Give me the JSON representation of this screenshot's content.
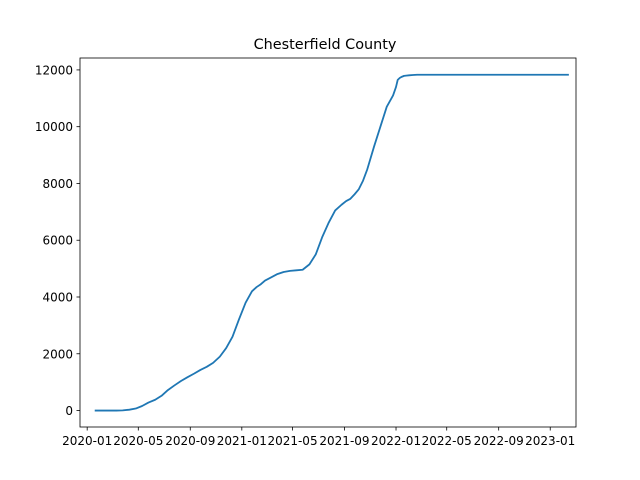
{
  "chart_data": {
    "type": "line",
    "title": "Chesterfield County",
    "xlabel": "",
    "ylabel": "",
    "grid": false,
    "legend": "none",
    "line_color": "#1f77b4",
    "xlim": [
      "2019-12-15",
      "2023-03-03"
    ],
    "ylim": [
      -580,
      12420
    ],
    "x_ticks": [
      {
        "date": "2020-01-01",
        "label": "2020-01"
      },
      {
        "date": "2020-05-01",
        "label": "2020-05"
      },
      {
        "date": "2020-09-01",
        "label": "2020-09"
      },
      {
        "date": "2021-01-01",
        "label": "2021-01"
      },
      {
        "date": "2021-05-01",
        "label": "2021-05"
      },
      {
        "date": "2021-09-01",
        "label": "2021-09"
      },
      {
        "date": "2022-01-01",
        "label": "2022-01"
      },
      {
        "date": "2022-05-01",
        "label": "2022-05"
      },
      {
        "date": "2022-09-01",
        "label": "2022-09"
      },
      {
        "date": "2023-01-01",
        "label": "2023-01"
      }
    ],
    "y_ticks": [
      {
        "value": 0,
        "label": "0"
      },
      {
        "value": 2000,
        "label": "2000"
      },
      {
        "value": 4000,
        "label": "4000"
      },
      {
        "value": 6000,
        "label": "6000"
      },
      {
        "value": 8000,
        "label": "8000"
      },
      {
        "value": 10000,
        "label": "10000"
      },
      {
        "value": 12000,
        "label": "12000"
      }
    ],
    "series": [
      {
        "x": [
          "2020-01-21",
          "2020-02-15",
          "2020-03-10",
          "2020-03-25",
          "2020-04-10",
          "2020-04-25",
          "2020-05-10",
          "2020-05-25",
          "2020-06-10",
          "2020-06-25",
          "2020-07-10",
          "2020-07-25",
          "2020-08-10",
          "2020-08-25",
          "2020-09-10",
          "2020-09-25",
          "2020-10-10",
          "2020-10-25",
          "2020-11-10",
          "2020-11-25",
          "2020-12-10",
          "2020-12-25",
          "2021-01-10",
          "2021-01-25",
          "2021-02-05",
          "2021-02-15",
          "2021-02-25",
          "2021-03-10",
          "2021-03-25",
          "2021-04-10",
          "2021-04-25",
          "2021-05-10",
          "2021-05-25",
          "2021-06-10",
          "2021-06-25",
          "2021-07-10",
          "2021-07-25",
          "2021-08-10",
          "2021-08-25",
          "2021-09-05",
          "2021-09-15",
          "2021-09-25",
          "2021-10-05",
          "2021-10-15",
          "2021-10-25",
          "2021-11-10",
          "2021-11-25",
          "2021-12-10",
          "2021-12-25",
          "2022-01-01",
          "2022-01-05",
          "2022-01-10",
          "2022-01-15",
          "2022-01-20",
          "2022-01-25",
          "2022-02-01",
          "2022-02-10",
          "2022-02-20",
          "2022-03-01",
          "2022-03-15",
          "2022-04-01",
          "2022-04-15",
          "2022-05-01",
          "2022-06-01",
          "2022-07-01",
          "2022-08-01",
          "2022-09-01",
          "2022-10-01",
          "2022-11-01",
          "2022-12-01",
          "2023-01-01",
          "2023-02-01",
          "2023-02-12"
        ],
        "y": [
          0,
          0,
          0,
          5,
          30,
          70,
          160,
          280,
          380,
          520,
          720,
          880,
          1040,
          1170,
          1300,
          1430,
          1540,
          1680,
          1900,
          2200,
          2600,
          3200,
          3800,
          4200,
          4350,
          4450,
          4580,
          4680,
          4800,
          4880,
          4920,
          4940,
          4960,
          5150,
          5500,
          6100,
          6600,
          7050,
          7250,
          7380,
          7460,
          7620,
          7800,
          8100,
          8500,
          9300,
          10000,
          10700,
          11100,
          11400,
          11650,
          11720,
          11760,
          11790,
          11800,
          11810,
          11820,
          11830,
          11830,
          11830,
          11830,
          11830,
          11830,
          11830,
          11830,
          11830,
          11830,
          11830,
          11830,
          11830,
          11830,
          11830,
          11830
        ]
      }
    ]
  }
}
